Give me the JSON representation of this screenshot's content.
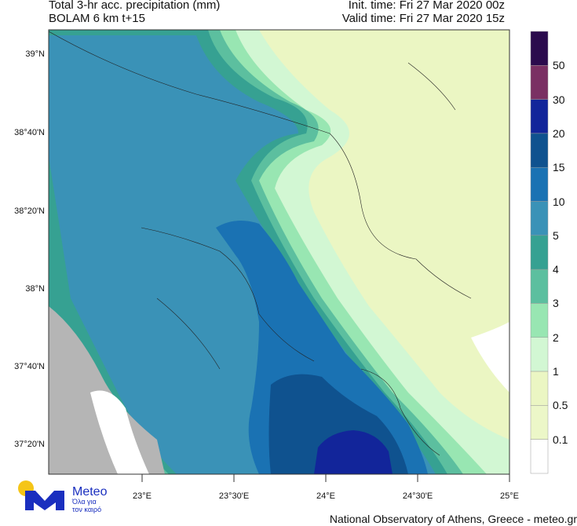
{
  "header": {
    "title": "Total 3-hr acc. precipitation (mm)",
    "model": "BOLAM 6 km t+15",
    "init_time": "Init. time: Fri 27 Mar 2020 00z",
    "valid_time": "Valid time: Fri 27 Mar 2020 15z"
  },
  "map": {
    "lat_labels": [
      "39°N",
      "38°40'N",
      "38°20'N",
      "38°N",
      "37°40'N",
      "37°20'N"
    ],
    "lon_labels": [
      "23°E",
      "23°30'E",
      "24°E",
      "24°30'E",
      "25°E"
    ]
  },
  "colorbar": {
    "unit": "mm",
    "labels": [
      "50",
      "30",
      "20",
      "15",
      "10",
      "5",
      "4",
      "3",
      "2",
      "1",
      "0.5",
      "0.1"
    ],
    "colors": [
      "#2b0b4d",
      "#7a3063",
      "#12259a",
      "#0f528f",
      "#1a72b3",
      "#3a92b7",
      "#36a192",
      "#5cbf9f",
      "#98e6b2",
      "#d2f7d3",
      "#ebf6c3",
      "#ecf7c8",
      "#ffffff"
    ]
  },
  "land_colors": {
    "outside_domain": "#b5b5b5",
    "no_precip": "#ffffff"
  },
  "logo": {
    "name": "Meteo",
    "tagline_1": "Όλα για",
    "tagline_2": "τον καιρό",
    "brand_color": "#1a2fbf",
    "sun_color": "#f5c518"
  },
  "footer": {
    "credit": "National Observatory of Athens, Greece - meteo.gr"
  }
}
